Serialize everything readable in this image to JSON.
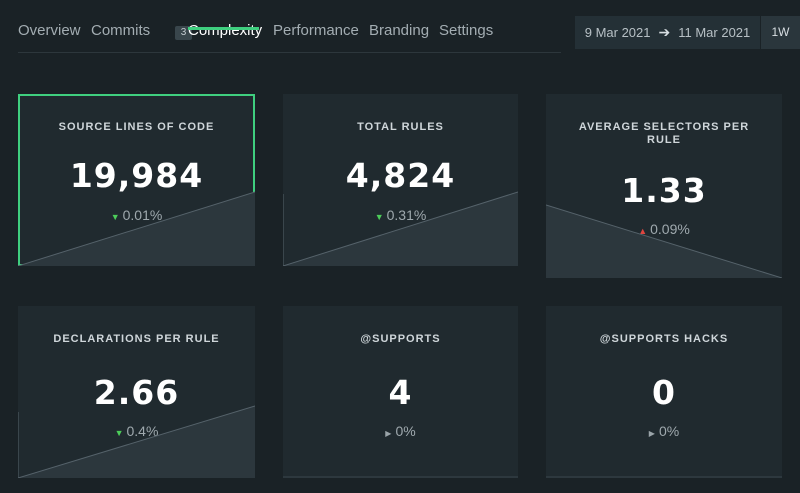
{
  "tabs": [
    {
      "label": "Overview"
    },
    {
      "label": "Commits",
      "count": "3"
    },
    {
      "label": "Complexity",
      "active": true
    },
    {
      "label": "Performance"
    },
    {
      "label": "Branding"
    },
    {
      "label": "Settings"
    }
  ],
  "date_range": {
    "start": "9 Mar 2021",
    "end": "11 Mar 2021"
  },
  "period": "1W",
  "cards": [
    {
      "title": "SOURCE LINES OF CODE",
      "value": "19,984",
      "delta": "0.01%",
      "trend": "down",
      "selected": true
    },
    {
      "title": "TOTAL RULES",
      "value": "4,824",
      "delta": "0.31%",
      "trend": "down"
    },
    {
      "title": "AVERAGE SELECTORS PER RULE",
      "value": "1.33",
      "delta": "0.09%",
      "trend": "up"
    },
    {
      "title": "DECLARATIONS PER RULE",
      "value": "2.66",
      "delta": "0.4%",
      "trend": "down"
    },
    {
      "title": "@SUPPORTS",
      "value": "4",
      "delta": "0%",
      "trend": "flat"
    },
    {
      "title": "@SUPPORTS HACKS",
      "value": "0",
      "delta": "0%",
      "trend": "flat"
    }
  ],
  "colors": {
    "accent": "#3fcf7f",
    "trend_down": "#4ccd5a",
    "trend_up": "#e0453f",
    "card_bg": "#202a2f",
    "page_bg": "#1a2226"
  }
}
